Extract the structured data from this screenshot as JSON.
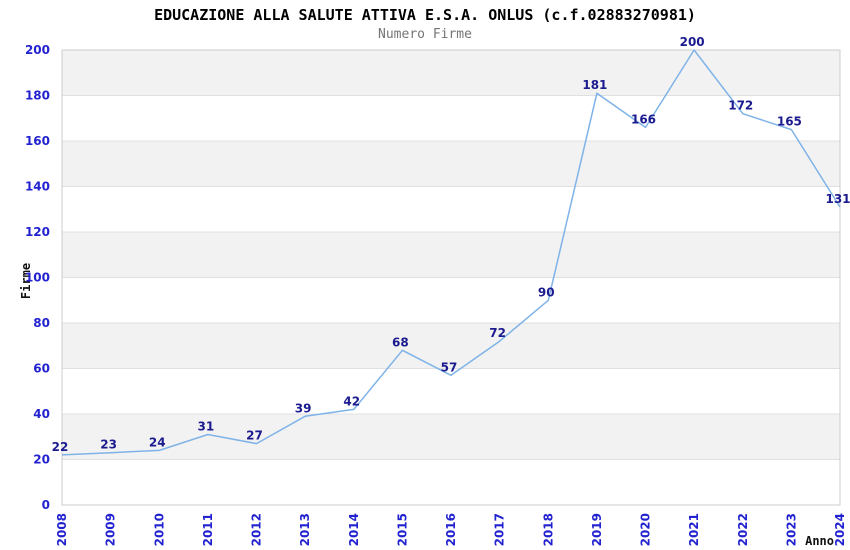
{
  "chart_data": {
    "type": "line",
    "title": "EDUCAZIONE ALLA SALUTE ATTIVA E.S.A. ONLUS (c.f.02883270981)",
    "subtitle": "Numero Firme",
    "xlabel": "Anno",
    "ylabel": "Firme",
    "x": [
      "2008",
      "2009",
      "2010",
      "2011",
      "2012",
      "2013",
      "2014",
      "2015",
      "2016",
      "2017",
      "2018",
      "2019",
      "2020",
      "2021",
      "2022",
      "2023",
      "2024"
    ],
    "values": [
      22,
      23,
      24,
      31,
      27,
      39,
      42,
      68,
      57,
      72,
      90,
      181,
      166,
      200,
      172,
      165,
      131
    ],
    "ylim": [
      0,
      200
    ],
    "y_ticks": [
      0,
      20,
      40,
      60,
      80,
      100,
      120,
      140,
      160,
      180,
      200
    ],
    "grid": "alternating horizontal bands with light gridlines every 20",
    "legend": "none",
    "data_labels": "shown above each point",
    "colors": {
      "line": "#7fb3e8",
      "tick_labels": "#2222d0",
      "value_labels": "#1b1b8f",
      "band_gray": "#f2f2f2",
      "band_white": "#ffffff",
      "gridline": "#e0e0e0",
      "plot_border": "#cccccc",
      "title": "#000000",
      "subtitle": "#757575",
      "axis_titles": "#111111"
    }
  }
}
